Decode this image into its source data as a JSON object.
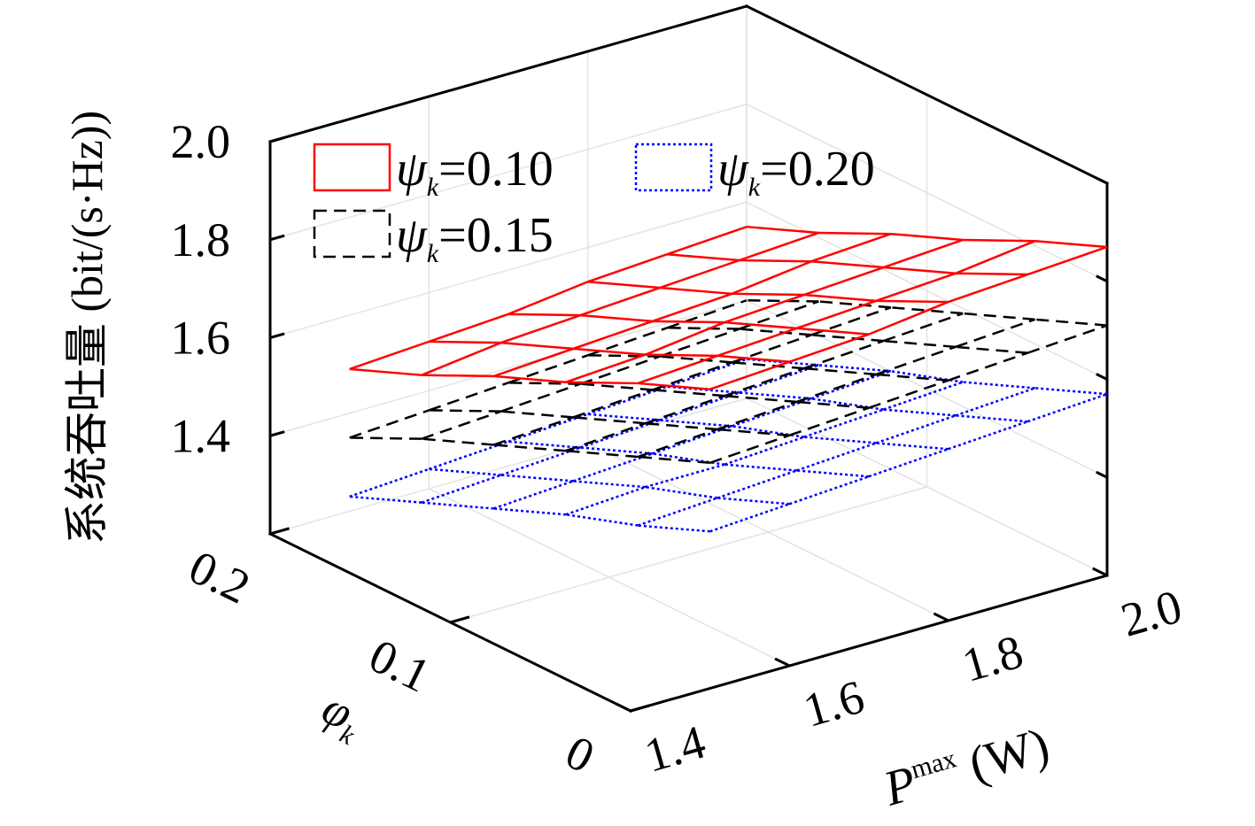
{
  "chart_data": {
    "type": "mesh3d",
    "x_label": {
      "symbol": "P",
      "superscript": "max",
      "unit": "(W)"
    },
    "y_label": {
      "symbol": "φ",
      "subscript": "k"
    },
    "z_label": "系统吞吐量 (bit/(s·Hz))",
    "x": [
      1.5,
      1.6,
      1.7,
      1.8,
      1.9,
      2.0
    ],
    "y": [
      0,
      0.04,
      0.08,
      0.12,
      0.16,
      0.2
    ],
    "xlim": [
      1.4,
      2.0
    ],
    "xticks": [
      1.4,
      1.6,
      1.8,
      {
        "value": 2,
        "label": "2.0"
      }
    ],
    "ylim": [
      0,
      0.2
    ],
    "yticks": [
      0,
      0.1,
      0.2
    ],
    "zlim": [
      1.2,
      2.0
    ],
    "zticks": [
      1.4,
      1.6,
      1.8,
      {
        "value": 2,
        "label": "2.0"
      }
    ],
    "grid": true,
    "legend": "upper left",
    "series": [
      {
        "name": {
          "symbol": "ψ",
          "subscript": "k",
          "value": "=0.10"
        },
        "color": "#ff0000",
        "dash": "solid",
        "z": [
          [
            1.81,
            1.82,
            1.83,
            1.85,
            1.86,
            1.87
          ],
          [
            1.75,
            1.76,
            1.77,
            1.78,
            1.79,
            1.81
          ],
          [
            1.68,
            1.69,
            1.71,
            1.72,
            1.73,
            1.74
          ],
          [
            1.62,
            1.63,
            1.64,
            1.65,
            1.67,
            1.68
          ],
          [
            1.55,
            1.57,
            1.58,
            1.59,
            1.6,
            1.61
          ],
          [
            1.49,
            1.5,
            1.51,
            1.53,
            1.54,
            1.55
          ]
        ]
      },
      {
        "name": {
          "symbol": "ψ",
          "subscript": "k",
          "value": "=0.15"
        },
        "color": "#000000",
        "dash": "dashed",
        "z": [
          [
            1.66,
            1.67,
            1.68,
            1.69,
            1.7,
            1.71
          ],
          [
            1.6,
            1.61,
            1.62,
            1.63,
            1.64,
            1.65
          ],
          [
            1.54,
            1.55,
            1.56,
            1.57,
            1.58,
            1.59
          ],
          [
            1.48,
            1.49,
            1.5,
            1.51,
            1.52,
            1.53
          ],
          [
            1.42,
            1.43,
            1.44,
            1.45,
            1.46,
            1.47
          ],
          [
            1.35,
            1.36,
            1.37,
            1.38,
            1.39,
            1.4
          ]
        ]
      },
      {
        "name": {
          "symbol": "ψ",
          "subscript": "k",
          "value": "=0.20"
        },
        "color": "#0000ff",
        "dash": "dotted",
        "z": [
          [
            1.52,
            1.53,
            1.54,
            1.55,
            1.56,
            1.57
          ],
          [
            1.46,
            1.47,
            1.48,
            1.49,
            1.5,
            1.51
          ],
          [
            1.41,
            1.42,
            1.42,
            1.43,
            1.44,
            1.45
          ],
          [
            1.35,
            1.36,
            1.37,
            1.38,
            1.39,
            1.4
          ],
          [
            1.29,
            1.3,
            1.31,
            1.32,
            1.33,
            1.34
          ],
          [
            1.23,
            1.24,
            1.25,
            1.26,
            1.27,
            1.28
          ]
        ]
      }
    ]
  }
}
